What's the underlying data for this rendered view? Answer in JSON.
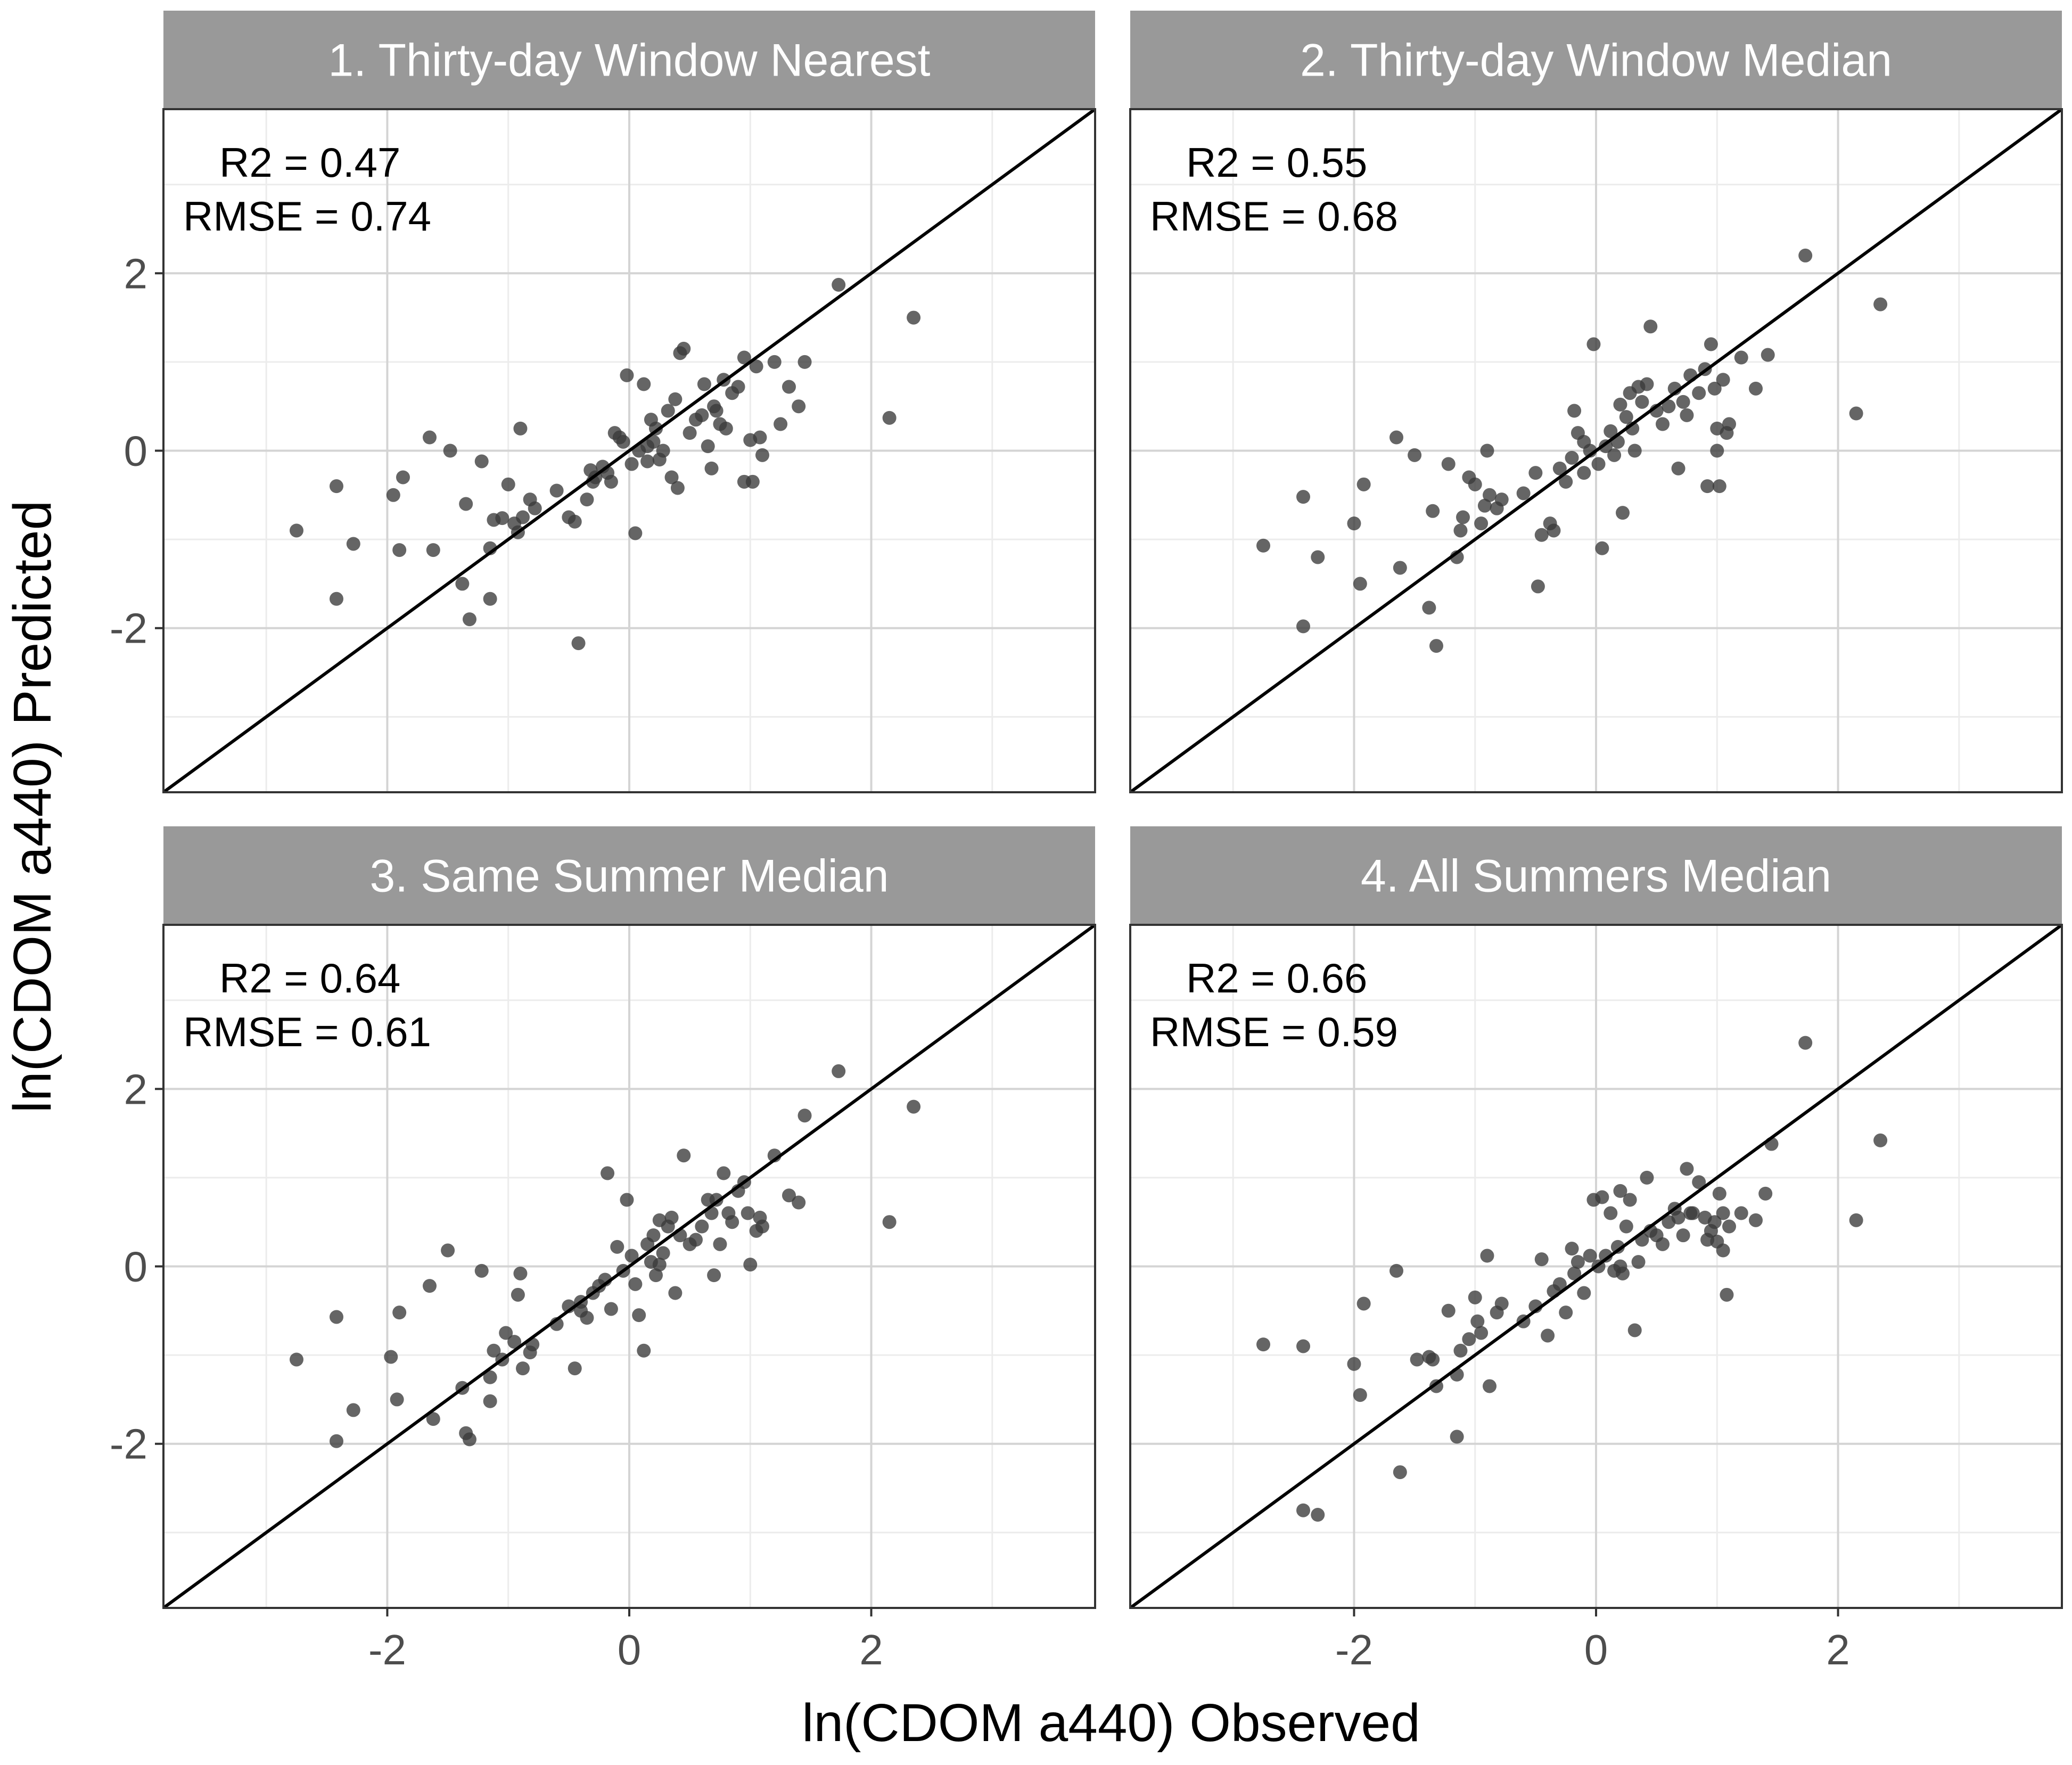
{
  "figure": {
    "xlabel": "ln(CDOM a440) Observed",
    "ylabel": "ln(CDOM a440) Predicted"
  },
  "colors": {
    "strip_fill": "#999999",
    "strip_text": "#ffffff",
    "panel_border": "#333333",
    "grid_major": "#d4d4d4",
    "grid_minor": "#ececec",
    "point": "#3a3a3a",
    "line": "#000000",
    "text": "#000000",
    "tick_text": "#4d4d4d"
  },
  "chart_data": [
    {
      "type": "scatter",
      "title": "1. Thirty-day Window Nearest",
      "r2_label": "R2 = 0.47",
      "rmse_label": "RMSE = 0.74",
      "xlim": [
        -3.85,
        3.85
      ],
      "ylim": [
        -3.85,
        3.85
      ],
      "xticks": [
        -2,
        0,
        2
      ],
      "yticks": [
        -2,
        0,
        2
      ],
      "identity_line": true,
      "points": [
        [
          -2.75,
          -0.9
        ],
        [
          -2.42,
          -1.67
        ],
        [
          -2.42,
          -0.4
        ],
        [
          -2.28,
          -1.05
        ],
        [
          -1.95,
          -0.5
        ],
        [
          -1.9,
          -1.12
        ],
        [
          -1.87,
          -0.3
        ],
        [
          -1.65,
          0.15
        ],
        [
          -1.62,
          -1.12
        ],
        [
          -1.48,
          0.0
        ],
        [
          -1.38,
          -1.5
        ],
        [
          -1.35,
          -0.6
        ],
        [
          -1.32,
          -1.9
        ],
        [
          -1.22,
          -0.12
        ],
        [
          -1.15,
          -1.67
        ],
        [
          -1.15,
          -1.1
        ],
        [
          -1.12,
          -0.78
        ],
        [
          -1.05,
          -0.76
        ],
        [
          -1.0,
          -0.38
        ],
        [
          -0.95,
          -0.82
        ],
        [
          -0.92,
          -0.92
        ],
        [
          -0.9,
          0.25
        ],
        [
          -0.88,
          -0.75
        ],
        [
          -0.82,
          -0.55
        ],
        [
          -0.78,
          -0.65
        ],
        [
          -0.6,
          -0.45
        ],
        [
          -0.5,
          -0.75
        ],
        [
          -0.45,
          -0.8
        ],
        [
          -0.42,
          -2.17
        ],
        [
          -0.35,
          -0.55
        ],
        [
          -0.32,
          -0.22
        ],
        [
          -0.28,
          -0.3
        ],
        [
          -0.22,
          -0.18
        ],
        [
          -0.18,
          -0.25
        ],
        [
          -0.15,
          -0.35
        ],
        [
          -0.12,
          0.2
        ],
        [
          -0.08,
          0.15
        ],
        [
          -0.05,
          0.1
        ],
        [
          -0.02,
          0.85
        ],
        [
          0.02,
          -0.15
        ],
        [
          0.05,
          -0.93
        ],
        [
          0.08,
          0.0
        ],
        [
          0.12,
          0.75
        ],
        [
          0.15,
          -0.12
        ],
        [
          0.18,
          0.35
        ],
        [
          0.2,
          0.1
        ],
        [
          0.22,
          0.25
        ],
        [
          0.25,
          -0.1
        ],
        [
          0.28,
          0.0
        ],
        [
          0.32,
          0.45
        ],
        [
          0.35,
          -0.3
        ],
        [
          0.38,
          0.58
        ],
        [
          0.42,
          1.1
        ],
        [
          0.45,
          1.15
        ],
        [
          0.5,
          0.2
        ],
        [
          0.55,
          0.35
        ],
        [
          0.6,
          0.4
        ],
        [
          0.62,
          0.75
        ],
        [
          0.65,
          0.05
        ],
        [
          0.68,
          -0.2
        ],
        [
          0.72,
          0.45
        ],
        [
          0.75,
          0.3
        ],
        [
          0.78,
          0.8
        ],
        [
          0.8,
          0.25
        ],
        [
          0.85,
          0.65
        ],
        [
          0.9,
          0.72
        ],
        [
          0.95,
          1.05
        ],
        [
          1.0,
          0.12
        ],
        [
          1.02,
          -0.35
        ],
        [
          1.05,
          0.95
        ],
        [
          1.08,
          0.15
        ],
        [
          1.1,
          -0.05
        ],
        [
          1.2,
          1.0
        ],
        [
          1.25,
          0.3
        ],
        [
          1.32,
          0.72
        ],
        [
          1.4,
          0.5
        ],
        [
          1.45,
          1.0
        ],
        [
          1.73,
          1.87
        ],
        [
          2.15,
          0.37
        ],
        [
          2.35,
          1.5
        ],
        [
          -0.3,
          -0.35
        ],
        [
          0.15,
          0.05
        ],
        [
          0.7,
          0.5
        ],
        [
          0.95,
          -0.35
        ],
        [
          0.4,
          -0.42
        ]
      ]
    },
    {
      "type": "scatter",
      "title": "2. Thirty-day Window Median",
      "r2_label": "R2 = 0.55",
      "rmse_label": "RMSE = 0.68",
      "xlim": [
        -3.85,
        3.85
      ],
      "ylim": [
        -3.85,
        3.85
      ],
      "xticks": [
        -2,
        0,
        2
      ],
      "yticks": [
        -2,
        0,
        2
      ],
      "identity_line": true,
      "points": [
        [
          -2.75,
          -1.07
        ],
        [
          -2.42,
          -0.52
        ],
        [
          -2.42,
          -1.98
        ],
        [
          -2.3,
          -1.2
        ],
        [
          -2.0,
          -0.82
        ],
        [
          -1.95,
          -1.5
        ],
        [
          -1.92,
          -0.38
        ],
        [
          -1.65,
          0.15
        ],
        [
          -1.62,
          -1.32
        ],
        [
          -1.5,
          -0.05
        ],
        [
          -1.38,
          -1.77
        ],
        [
          -1.35,
          -0.68
        ],
        [
          -1.32,
          -2.2
        ],
        [
          -1.22,
          -0.15
        ],
        [
          -1.15,
          -1.2
        ],
        [
          -1.12,
          -0.9
        ],
        [
          -1.1,
          -0.75
        ],
        [
          -1.05,
          -0.3
        ],
        [
          -1.0,
          -0.38
        ],
        [
          -0.95,
          -0.82
        ],
        [
          -0.92,
          -0.62
        ],
        [
          -0.9,
          0.0
        ],
        [
          -0.88,
          -0.5
        ],
        [
          -0.82,
          -0.65
        ],
        [
          -0.78,
          -0.55
        ],
        [
          -0.6,
          -0.48
        ],
        [
          -0.5,
          -0.25
        ],
        [
          -0.48,
          -1.53
        ],
        [
          -0.45,
          -0.95
        ],
        [
          -0.38,
          -0.82
        ],
        [
          -0.35,
          -0.9
        ],
        [
          -0.3,
          -0.2
        ],
        [
          -0.25,
          -0.35
        ],
        [
          -0.2,
          -0.08
        ],
        [
          -0.18,
          0.45
        ],
        [
          -0.15,
          0.2
        ],
        [
          -0.1,
          -0.25
        ],
        [
          -0.05,
          0.0
        ],
        [
          -0.02,
          1.2
        ],
        [
          0.02,
          -0.15
        ],
        [
          0.05,
          -1.1
        ],
        [
          0.08,
          0.05
        ],
        [
          0.12,
          0.22
        ],
        [
          0.15,
          -0.05
        ],
        [
          0.18,
          0.1
        ],
        [
          0.2,
          0.52
        ],
        [
          0.22,
          -0.7
        ],
        [
          0.25,
          0.38
        ],
        [
          0.28,
          0.65
        ],
        [
          0.32,
          0.0
        ],
        [
          0.35,
          0.72
        ],
        [
          0.38,
          0.55
        ],
        [
          0.42,
          0.75
        ],
        [
          0.45,
          1.4
        ],
        [
          0.5,
          0.45
        ],
        [
          0.55,
          0.3
        ],
        [
          0.6,
          0.5
        ],
        [
          0.65,
          0.7
        ],
        [
          0.68,
          -0.2
        ],
        [
          0.72,
          0.55
        ],
        [
          0.75,
          0.4
        ],
        [
          0.78,
          0.85
        ],
        [
          0.85,
          0.65
        ],
        [
          0.9,
          0.92
        ],
        [
          0.95,
          1.2
        ],
        [
          0.98,
          0.7
        ],
        [
          1.0,
          0.25
        ],
        [
          1.02,
          -0.4
        ],
        [
          1.05,
          0.8
        ],
        [
          1.08,
          0.2
        ],
        [
          1.1,
          0.3
        ],
        [
          1.2,
          1.05
        ],
        [
          1.32,
          0.7
        ],
        [
          1.42,
          1.08
        ],
        [
          1.73,
          2.2
        ],
        [
          2.15,
          0.42
        ],
        [
          2.35,
          1.65
        ],
        [
          0.92,
          -0.4
        ],
        [
          1.0,
          0.0
        ],
        [
          0.3,
          0.25
        ],
        [
          -0.1,
          0.1
        ]
      ]
    },
    {
      "type": "scatter",
      "title": "3. Same Summer Median",
      "r2_label": "R2 = 0.64",
      "rmse_label": "RMSE = 0.61",
      "xlim": [
        -3.85,
        3.85
      ],
      "ylim": [
        -3.85,
        3.85
      ],
      "xticks": [
        -2,
        0,
        2
      ],
      "yticks": [
        -2,
        0,
        2
      ],
      "identity_line": true,
      "points": [
        [
          -2.75,
          -1.05
        ],
        [
          -2.42,
          -0.57
        ],
        [
          -2.42,
          -1.97
        ],
        [
          -2.28,
          -1.62
        ],
        [
          -1.97,
          -1.02
        ],
        [
          -1.92,
          -1.5
        ],
        [
          -1.9,
          -0.52
        ],
        [
          -1.65,
          -0.22
        ],
        [
          -1.62,
          -1.72
        ],
        [
          -1.5,
          0.18
        ],
        [
          -1.38,
          -1.37
        ],
        [
          -1.35,
          -1.88
        ],
        [
          -1.32,
          -1.95
        ],
        [
          -1.22,
          -0.05
        ],
        [
          -1.15,
          -1.52
        ],
        [
          -1.15,
          -1.25
        ],
        [
          -1.12,
          -0.95
        ],
        [
          -1.05,
          -1.05
        ],
        [
          -1.02,
          -0.75
        ],
        [
          -0.95,
          -0.85
        ],
        [
          -0.92,
          -0.32
        ],
        [
          -0.9,
          -0.08
        ],
        [
          -0.88,
          -1.15
        ],
        [
          -0.82,
          -0.97
        ],
        [
          -0.8,
          -0.88
        ],
        [
          -0.6,
          -0.65
        ],
        [
          -0.5,
          -0.45
        ],
        [
          -0.45,
          -1.15
        ],
        [
          -0.4,
          -0.5
        ],
        [
          -0.35,
          -0.58
        ],
        [
          -0.3,
          -0.3
        ],
        [
          -0.25,
          -0.22
        ],
        [
          -0.2,
          -0.15
        ],
        [
          -0.18,
          1.05
        ],
        [
          -0.15,
          -0.48
        ],
        [
          -0.1,
          0.22
        ],
        [
          -0.05,
          -0.05
        ],
        [
          -0.02,
          0.75
        ],
        [
          0.02,
          0.12
        ],
        [
          0.05,
          -0.2
        ],
        [
          0.08,
          -0.55
        ],
        [
          0.12,
          -0.95
        ],
        [
          0.15,
          0.25
        ],
        [
          0.18,
          0.05
        ],
        [
          0.2,
          0.35
        ],
        [
          0.22,
          -0.1
        ],
        [
          0.25,
          0.52
        ],
        [
          0.28,
          0.15
        ],
        [
          0.32,
          0.45
        ],
        [
          0.35,
          0.55
        ],
        [
          0.38,
          -0.3
        ],
        [
          0.42,
          0.35
        ],
        [
          0.45,
          1.25
        ],
        [
          0.5,
          0.25
        ],
        [
          0.55,
          0.3
        ],
        [
          0.6,
          0.45
        ],
        [
          0.65,
          0.75
        ],
        [
          0.68,
          0.6
        ],
        [
          0.72,
          0.75
        ],
        [
          0.75,
          0.25
        ],
        [
          0.78,
          1.05
        ],
        [
          0.82,
          0.6
        ],
        [
          0.85,
          0.5
        ],
        [
          0.9,
          0.85
        ],
        [
          0.95,
          0.95
        ],
        [
          0.98,
          0.6
        ],
        [
          1.0,
          0.02
        ],
        [
          1.05,
          0.4
        ],
        [
          1.08,
          0.55
        ],
        [
          1.1,
          0.45
        ],
        [
          1.2,
          1.25
        ],
        [
          1.32,
          0.8
        ],
        [
          1.4,
          0.72
        ],
        [
          1.45,
          1.7
        ],
        [
          1.73,
          2.2
        ],
        [
          2.15,
          0.5
        ],
        [
          2.35,
          1.8
        ],
        [
          0.25,
          0.02
        ],
        [
          0.7,
          -0.1
        ],
        [
          -0.4,
          -0.4
        ]
      ]
    },
    {
      "type": "scatter",
      "title": "4. All Summers Median",
      "r2_label": "R2 = 0.66",
      "rmse_label": "RMSE = 0.59",
      "xlim": [
        -3.85,
        3.85
      ],
      "ylim": [
        -3.85,
        3.85
      ],
      "xticks": [
        -2,
        0,
        2
      ],
      "yticks": [
        -2,
        0,
        2
      ],
      "identity_line": true,
      "points": [
        [
          -2.75,
          -0.88
        ],
        [
          -2.42,
          -2.75
        ],
        [
          -2.42,
          -0.9
        ],
        [
          -2.3,
          -2.8
        ],
        [
          -2.0,
          -1.1
        ],
        [
          -1.95,
          -1.45
        ],
        [
          -1.92,
          -0.42
        ],
        [
          -1.65,
          -0.05
        ],
        [
          -1.62,
          -2.32
        ],
        [
          -1.48,
          -1.05
        ],
        [
          -1.38,
          -1.02
        ],
        [
          -1.35,
          -1.05
        ],
        [
          -1.32,
          -1.35
        ],
        [
          -1.22,
          -0.5
        ],
        [
          -1.15,
          -1.22
        ],
        [
          -1.15,
          -1.92
        ],
        [
          -1.12,
          -0.95
        ],
        [
          -1.05,
          -0.82
        ],
        [
          -1.0,
          -0.35
        ],
        [
          -0.98,
          -0.62
        ],
        [
          -0.95,
          -0.75
        ],
        [
          -0.9,
          0.12
        ],
        [
          -0.88,
          -1.35
        ],
        [
          -0.82,
          -0.52
        ],
        [
          -0.78,
          -0.42
        ],
        [
          -0.6,
          -0.62
        ],
        [
          -0.5,
          -0.45
        ],
        [
          -0.45,
          0.08
        ],
        [
          -0.4,
          -0.78
        ],
        [
          -0.35,
          -0.28
        ],
        [
          -0.3,
          -0.2
        ],
        [
          -0.25,
          -0.52
        ],
        [
          -0.2,
          0.2
        ],
        [
          -0.18,
          -0.08
        ],
        [
          -0.15,
          0.05
        ],
        [
          -0.1,
          -0.3
        ],
        [
          -0.05,
          0.12
        ],
        [
          -0.02,
          0.75
        ],
        [
          0.02,
          0.0
        ],
        [
          0.05,
          0.78
        ],
        [
          0.08,
          0.12
        ],
        [
          0.12,
          0.6
        ],
        [
          0.15,
          -0.05
        ],
        [
          0.18,
          0.22
        ],
        [
          0.2,
          0.85
        ],
        [
          0.22,
          -0.08
        ],
        [
          0.25,
          0.45
        ],
        [
          0.28,
          0.75
        ],
        [
          0.32,
          -0.72
        ],
        [
          0.35,
          0.05
        ],
        [
          0.38,
          0.3
        ],
        [
          0.42,
          1.0
        ],
        [
          0.45,
          0.4
        ],
        [
          0.5,
          0.35
        ],
        [
          0.55,
          0.25
        ],
        [
          0.6,
          0.5
        ],
        [
          0.65,
          0.65
        ],
        [
          0.68,
          0.55
        ],
        [
          0.72,
          0.35
        ],
        [
          0.75,
          1.1
        ],
        [
          0.78,
          0.6
        ],
        [
          0.8,
          0.6
        ],
        [
          0.85,
          0.95
        ],
        [
          0.9,
          0.55
        ],
        [
          0.95,
          0.4
        ],
        [
          0.98,
          0.5
        ],
        [
          1.0,
          0.28
        ],
        [
          1.02,
          0.82
        ],
        [
          1.05,
          0.6
        ],
        [
          1.08,
          -0.32
        ],
        [
          1.1,
          0.45
        ],
        [
          1.2,
          0.6
        ],
        [
          1.32,
          0.52
        ],
        [
          1.4,
          0.82
        ],
        [
          1.45,
          1.38
        ],
        [
          1.73,
          2.52
        ],
        [
          2.15,
          0.52
        ],
        [
          2.35,
          1.42
        ],
        [
          1.05,
          0.18
        ],
        [
          0.92,
          0.3
        ],
        [
          0.2,
          0.0
        ]
      ]
    }
  ]
}
